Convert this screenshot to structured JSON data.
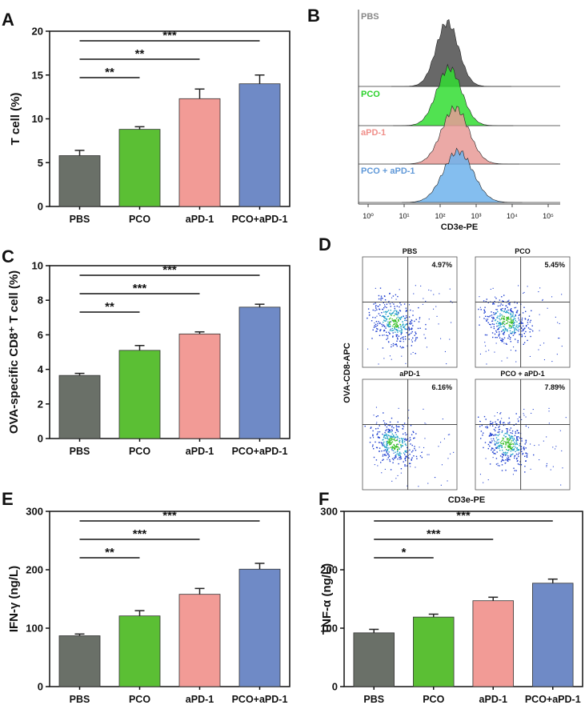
{
  "colors": {
    "PBS": "#6a7068",
    "PCO": "#5bbf34",
    "aPD-1": "#f29b96",
    "PCO+aPD-1": "#6f8ac6"
  },
  "chart_data": [
    {
      "panel": "A",
      "type": "bar",
      "categories": [
        "PBS",
        "PCO",
        "aPD-1",
        "PCO+aPD-1"
      ],
      "values": [
        5.8,
        8.8,
        12.3,
        14.0
      ],
      "errors": [
        0.6,
        0.3,
        1.1,
        1.0
      ],
      "ylabel": "T cell (%)",
      "ylim": [
        0,
        20
      ],
      "yticks": [
        "0",
        "5",
        "10",
        "15",
        "20"
      ],
      "sig": [
        {
          "from": 0,
          "to": 1,
          "label": "**"
        },
        {
          "from": 0,
          "to": 2,
          "label": "**"
        },
        {
          "from": 0,
          "to": 3,
          "label": "***"
        }
      ]
    },
    {
      "panel": "C",
      "type": "bar",
      "categories": [
        "PBS",
        "PCO",
        "aPD-1",
        "PCO+aPD-1"
      ],
      "values": [
        3.65,
        5.1,
        6.05,
        7.6
      ],
      "errors": [
        0.12,
        0.28,
        0.12,
        0.17
      ],
      "ylabel": "OVA-specific CD8⁺ T cell (%)",
      "ylim": [
        0,
        10
      ],
      "yticks": [
        "0",
        "2",
        "4",
        "6",
        "8",
        "10"
      ],
      "sig": [
        {
          "from": 0,
          "to": 1,
          "label": "**"
        },
        {
          "from": 0,
          "to": 2,
          "label": "***"
        },
        {
          "from": 0,
          "to": 3,
          "label": "***"
        }
      ]
    },
    {
      "panel": "E",
      "type": "bar",
      "categories": [
        "PBS",
        "PCO",
        "aPD-1",
        "PCO+aPD-1"
      ],
      "values": [
        87,
        121,
        158,
        201
      ],
      "errors": [
        3,
        9,
        10,
        10
      ],
      "ylabel": "IFN-γ (ng/L)",
      "ylim": [
        0,
        300
      ],
      "yticks": [
        "0",
        "100",
        "200",
        "300"
      ],
      "sig": [
        {
          "from": 0,
          "to": 1,
          "label": "**"
        },
        {
          "from": 0,
          "to": 2,
          "label": "***"
        },
        {
          "from": 0,
          "to": 3,
          "label": "***"
        }
      ]
    },
    {
      "panel": "F",
      "type": "bar",
      "categories": [
        "PBS",
        "PCO",
        "aPD-1",
        "PCO+aPD-1"
      ],
      "values": [
        92,
        119,
        147,
        177
      ],
      "errors": [
        6,
        5,
        6,
        7
      ],
      "ylabel": "TNF-α (ng/L)",
      "ylim": [
        0,
        300
      ],
      "yticks": [
        "0",
        "100",
        "200",
        "300"
      ],
      "sig": [
        {
          "from": 0,
          "to": 1,
          "label": "*"
        },
        {
          "from": 0,
          "to": 2,
          "label": "***"
        },
        {
          "from": 0,
          "to": 3,
          "label": "***"
        }
      ]
    }
  ],
  "histogram": {
    "panel": "B",
    "xlabel": "CD3e-PE",
    "xticks": [
      "10⁰",
      "10¹",
      "10²",
      "10³",
      "10⁴",
      "10⁵"
    ],
    "peaks_log10": [
      2.2,
      2.25,
      2.42,
      2.5
    ],
    "tracks": [
      {
        "name": "PBS",
        "fill": "#4d4d4d",
        "text": "#888888"
      },
      {
        "name": "PCO",
        "fill": "#33dd33",
        "text": "#2bd12b"
      },
      {
        "name": "aPD-1",
        "fill": "#e89a97",
        "text": "#f08f8a"
      },
      {
        "name": "PCO + aPD-1",
        "fill": "#6fb3ec",
        "text": "#5f98d8"
      }
    ]
  },
  "flow": {
    "panel": "D",
    "ylabel": "OVA-CD8-APC",
    "xlabel": "CD3e-PE",
    "plots": [
      {
        "name": "PBS",
        "percent": "4.97%"
      },
      {
        "name": "PCO",
        "percent": "5.45%"
      },
      {
        "name": "aPD-1",
        "percent": "6.16%"
      },
      {
        "name": "PCO + aPD-1",
        "percent": "7.89%"
      }
    ]
  },
  "panel_labels": [
    "A",
    "B",
    "C",
    "D",
    "E",
    "F"
  ]
}
